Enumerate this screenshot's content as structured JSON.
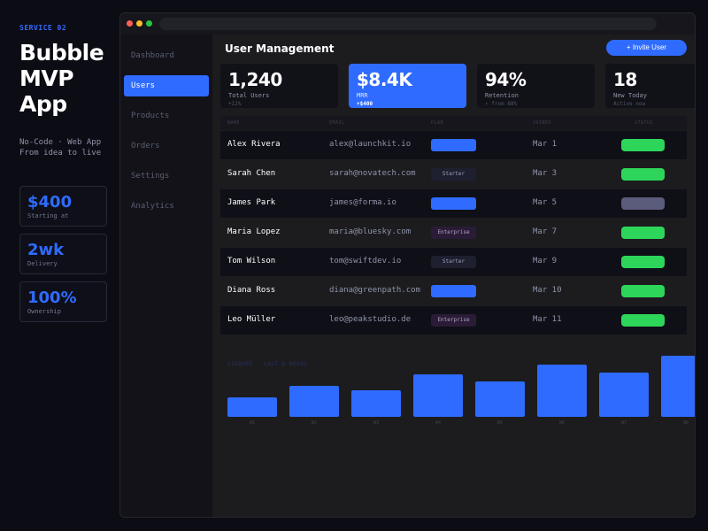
{
  "promo": {
    "tag": "SERVICE 02",
    "title_line1": "Bubble",
    "title_line2": "MVP App",
    "subtitle": "No-Code · Web App\nFrom idea to live",
    "stats": [
      {
        "value": "$400",
        "label": "Starting at"
      },
      {
        "value": "2wk",
        "label": "Delivery"
      },
      {
        "value": "100%",
        "label": "Ownership"
      }
    ]
  },
  "sidebar": {
    "items": [
      {
        "label": "Dashboard"
      },
      {
        "label": "Users",
        "active": true
      },
      {
        "label": "Products"
      },
      {
        "label": "Orders"
      },
      {
        "label": "Settings"
      },
      {
        "label": "Analytics"
      }
    ]
  },
  "header": {
    "title": "User Management",
    "invite_label": "+ Invite User"
  },
  "kpis": [
    {
      "value": "1,240",
      "label": "Total Users",
      "delta": "+12%"
    },
    {
      "value": "$8.4K",
      "label": "MRR",
      "delta": "+$400"
    },
    {
      "value": "94%",
      "label": "Retention",
      "delta": "↑ from 88%"
    },
    {
      "value": "18",
      "label": "New Today",
      "delta": "Active now"
    }
  ],
  "table": {
    "columns": [
      "NAME",
      "EMAIL",
      "PLAN",
      "JOINED",
      "STATUS"
    ],
    "rows": [
      {
        "name": "Alex Rivera",
        "email": "alex@launchkit.io",
        "plan": "",
        "plan_type": "pro",
        "joined": "Mar 1",
        "status": "active"
      },
      {
        "name": "Sarah Chen",
        "email": "sarah@novatech.com",
        "plan": "Starter",
        "plan_type": "starter",
        "joined": "Mar 3",
        "status": "active"
      },
      {
        "name": "James Park",
        "email": "james@forma.io",
        "plan": "",
        "plan_type": "pro",
        "joined": "Mar 5",
        "status": "inactive"
      },
      {
        "name": "Maria Lopez",
        "email": "maria@bluesky.com",
        "plan": "Enterprise",
        "plan_type": "ent",
        "joined": "Mar 7",
        "status": "active"
      },
      {
        "name": "Tom Wilson",
        "email": "tom@swiftdev.io",
        "plan": "Starter",
        "plan_type": "starter",
        "joined": "Mar 9",
        "status": "active"
      },
      {
        "name": "Diana Ross",
        "email": "diana@greenpath.com",
        "plan": "",
        "plan_type": "pro",
        "joined": "Mar 10",
        "status": "active"
      },
      {
        "name": "Leo Müller",
        "email": "leo@peakstudio.de",
        "plan": "Enterprise",
        "plan_type": "ent",
        "joined": "Mar 11",
        "status": "active"
      }
    ]
  },
  "chart_data": {
    "type": "bar",
    "title": "SIGNUPS · LAST 8 WEEKS",
    "categories": [
      "W1",
      "W2",
      "W3",
      "W4",
      "W5",
      "W6",
      "W7",
      "W8"
    ],
    "values": [
      21,
      34,
      29,
      47,
      39,
      57,
      49,
      67
    ],
    "ylim": [
      0,
      70
    ],
    "grid": false
  },
  "colors": {
    "accent": "#2f6bff",
    "active": "#2dd65a",
    "inactive": "#5b5b7b"
  }
}
